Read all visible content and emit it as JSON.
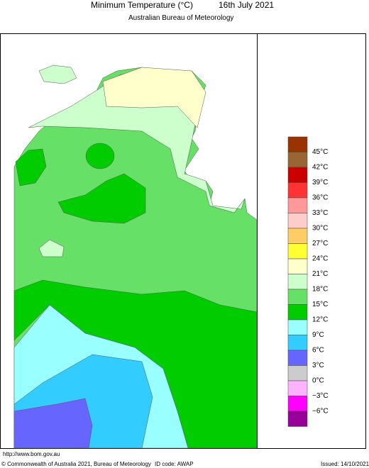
{
  "header": {
    "title": "Minimum Temperature (°C)",
    "date": "16th July 2021",
    "subtitle": "Australian Bureau of Meteorology"
  },
  "legend": {
    "colors": [
      "#993300",
      "#996633",
      "#cc0000",
      "#ff3333",
      "#ff9999",
      "#ffcccc",
      "#ffcc66",
      "#ffff33",
      "#ffffcc",
      "#ccffcc",
      "#66e066",
      "#00cc00",
      "#99ffff",
      "#33ccff",
      "#6666ff",
      "#cccccc",
      "#ffb3ff",
      "#ff00ff",
      "#990099"
    ],
    "labels": [
      "45°C",
      "42°C",
      "39°C",
      "36°C",
      "33°C",
      "30°C",
      "27°C",
      "24°C",
      "21°C",
      "18°C",
      "15°C",
      "12°C",
      "9°C",
      "6°C",
      "3°C",
      "0°C",
      "−3°C",
      "−6°C"
    ]
  },
  "footer": {
    "url": "http://www.bom.gov.au",
    "copyright": "© Commonwealth of Australia 2021, Bureau of Meteorology",
    "id_code": "ID code: AWAP",
    "issued": "Issued: 14/10/2021"
  }
}
